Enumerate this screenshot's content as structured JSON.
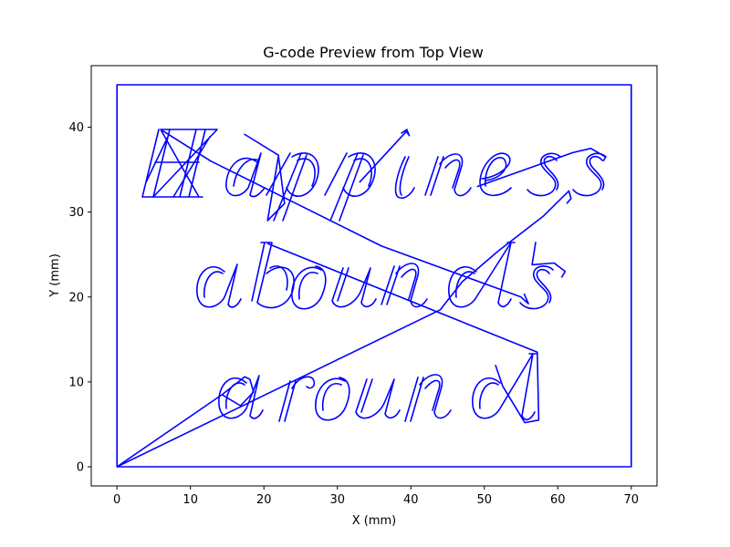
{
  "chart_data": {
    "type": "line",
    "title": "G-code Preview from Top View",
    "xlabel": "X (mm)",
    "ylabel": "Y (mm)",
    "xlim": [
      -3.5,
      73.5
    ],
    "ylim": [
      -2.25,
      47.25
    ],
    "xticks": [
      0,
      10,
      20,
      30,
      40,
      50,
      60,
      70
    ],
    "yticks": [
      0,
      10,
      20,
      30,
      40
    ],
    "grid": false,
    "line_color": "#0000ff",
    "annotations": [
      "Happiness",
      "abounds",
      "around"
    ],
    "series": [
      {
        "x": [
          0,
          0,
          70,
          70,
          0,
          14.3,
          17.4,
          18.1,
          18.6,
          16.8,
          14.3
        ],
        "y": [
          0,
          45,
          45,
          0,
          0,
          8.5,
          10.6,
          10.3,
          8.8,
          7.2,
          8.5
        ]
      },
      {
        "x": [
          0,
          44,
          47,
          52,
          58,
          61.5,
          61.8,
          61.2
        ],
        "y": [
          0,
          18.5,
          21.8,
          25.5,
          29.5,
          32.5,
          31.6,
          31.0
        ]
      },
      {
        "x": [
          20.5,
          57.2,
          57.4,
          55.5,
          52.5,
          51.5
        ],
        "y": [
          26.3,
          13.5,
          5.5,
          5.2,
          9.5,
          12.0
        ]
      },
      {
        "x": [
          6.0,
          12.8,
          36.0,
          55.0,
          56.0,
          55.4
        ],
        "y": [
          39.7,
          36.0,
          26.0,
          20.0,
          19.2,
          20.4
        ]
      },
      {
        "x": [
          17.3,
          22.0,
          20.5,
          22.8,
          22.0
        ],
        "y": [
          39.2,
          36.7,
          29.0,
          31.0,
          36.5
        ]
      },
      {
        "x": [
          33.0,
          39.5,
          39.8,
          39.3
        ],
        "y": [
          33.5,
          39.6,
          39.0,
          39.6
        ]
      },
      {
        "x": [
          49.0,
          62.0,
          64.5,
          66.5,
          66.2
        ],
        "y": [
          33.0,
          37.0,
          37.5,
          36.5,
          36.0
        ]
      },
      {
        "x": [
          57.0,
          56.5,
          59.5,
          61.0,
          60.5
        ],
        "y": [
          26.5,
          23.8,
          24.0,
          23.0,
          22.3
        ]
      }
    ]
  }
}
